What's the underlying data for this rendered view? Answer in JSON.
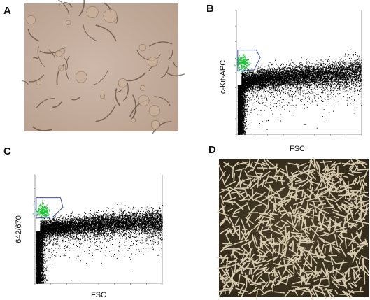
{
  "panels": [
    {
      "label": "A"
    },
    {
      "label": "B",
      "y_axis_label": "c-Kit-APC",
      "x_axis_label": "FSC"
    },
    {
      "label": "C",
      "y_axis_label": "642/670",
      "x_axis_label": "FSC"
    },
    {
      "label": "D"
    }
  ]
}
